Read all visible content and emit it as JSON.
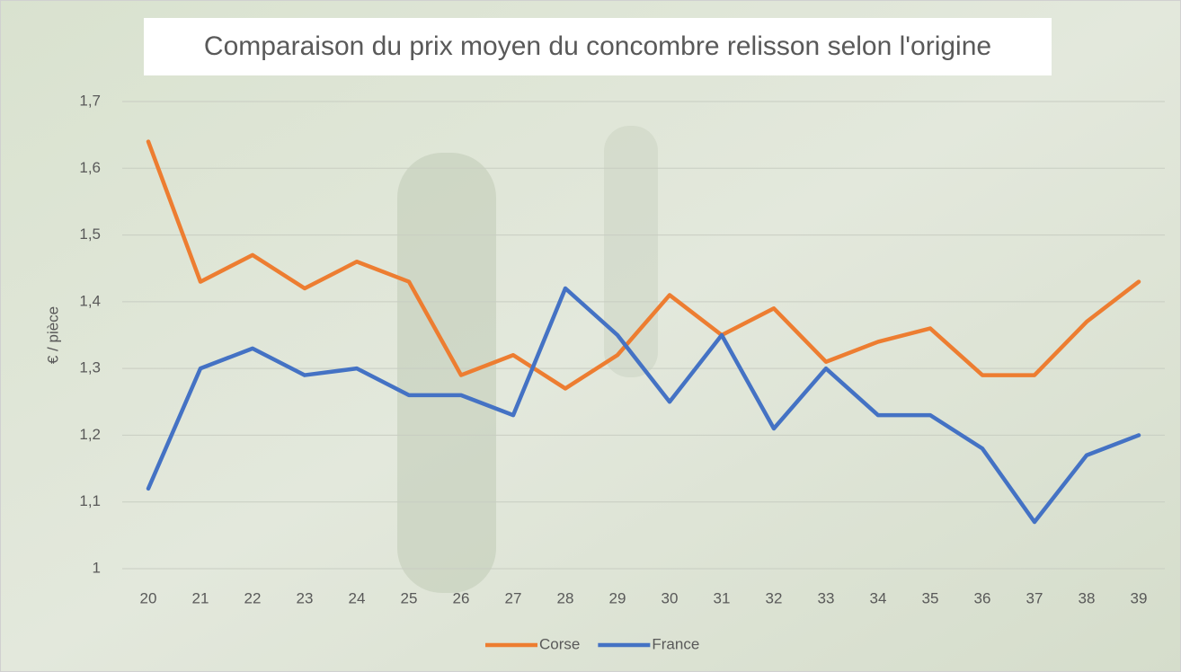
{
  "chart_data": {
    "type": "line",
    "title": "Comparaison du prix moyen du concombre relisson selon l'origine",
    "y_label": "€ / pièce",
    "categories": [
      "20",
      "21",
      "22",
      "23",
      "24",
      "25",
      "26",
      "27",
      "28",
      "29",
      "30",
      "31",
      "32",
      "33",
      "34",
      "35",
      "36",
      "37",
      "38",
      "39"
    ],
    "series": [
      {
        "name": "Corse",
        "color": "#ed7d31",
        "values": [
          1.64,
          1.43,
          1.47,
          1.42,
          1.46,
          1.43,
          1.29,
          1.32,
          1.27,
          1.32,
          1.41,
          1.35,
          1.39,
          1.31,
          1.34,
          1.36,
          1.29,
          1.29,
          1.37,
          1.43
        ]
      },
      {
        "name": "France",
        "color": "#4472c4",
        "values": [
          1.12,
          1.3,
          1.33,
          1.29,
          1.3,
          1.26,
          1.26,
          1.23,
          1.42,
          1.35,
          1.25,
          1.35,
          1.21,
          1.3,
          1.23,
          1.23,
          1.18,
          1.07,
          1.17,
          1.2
        ]
      }
    ],
    "ylim": [
      1,
      1.7
    ],
    "yticks": [
      1,
      {
        "value": 1.1,
        "label": "1,1"
      },
      {
        "value": 1.2,
        "label": "1,2"
      },
      {
        "value": 1.3,
        "label": "1,3"
      },
      {
        "value": 1.4,
        "label": "1,4"
      },
      {
        "value": 1.5,
        "label": "1,5"
      },
      {
        "value": 1.6,
        "label": "1,6"
      },
      {
        "value": 1.7,
        "label": "1,7"
      }
    ],
    "grid": true,
    "legend": "bottom"
  }
}
